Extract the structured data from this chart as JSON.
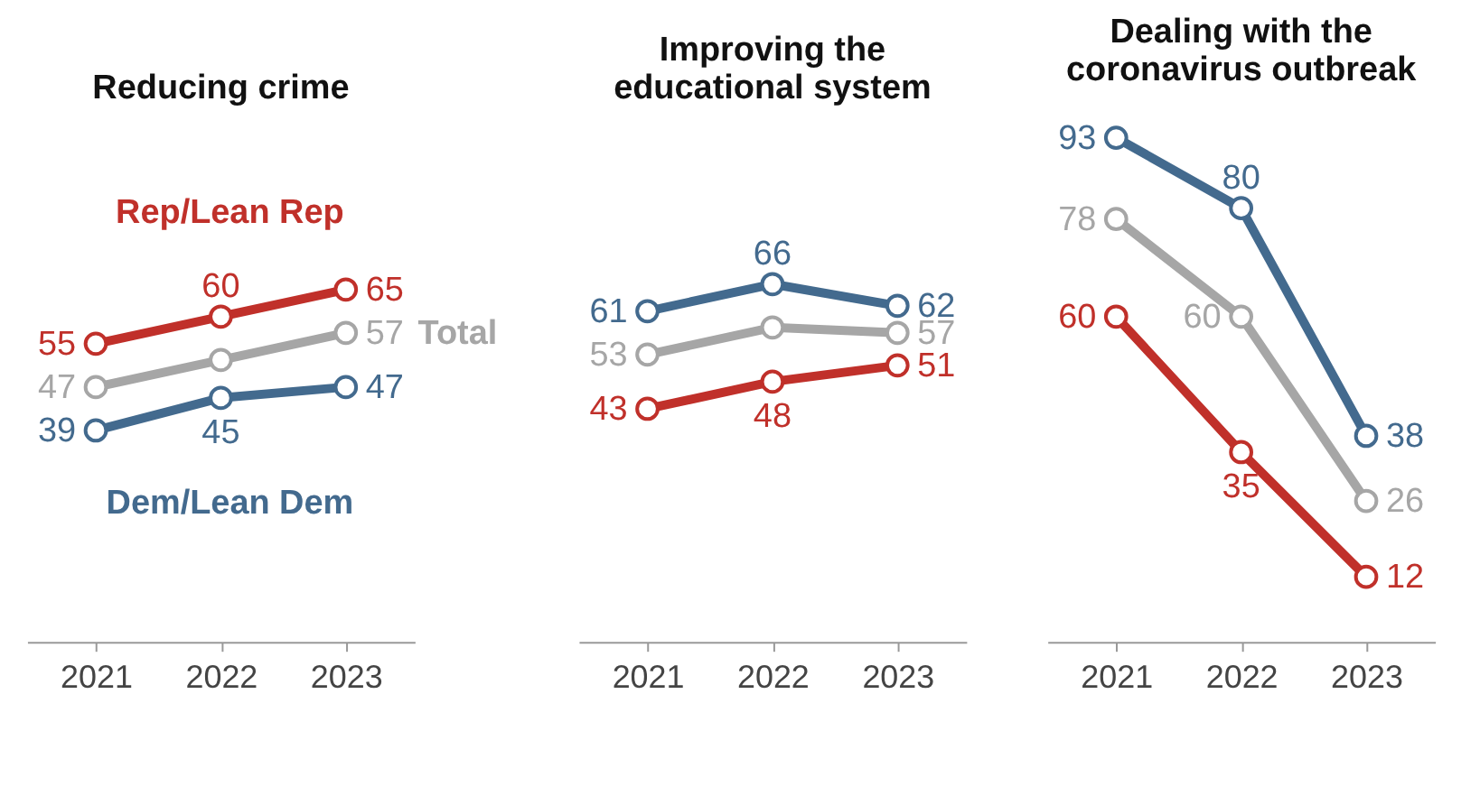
{
  "chart_data": [
    {
      "type": "line",
      "title": "Reducing crime",
      "categories": [
        "2021",
        "2022",
        "2023"
      ],
      "tick_labels": "x",
      "grid": false,
      "marker": "circle",
      "line_style": "solid",
      "series": [
        {
          "name": "Rep/Lean Rep",
          "color": "#c0302a",
          "values": [
            55,
            60,
            65
          ],
          "value_labels": [
            "55",
            "60",
            "65"
          ]
        },
        {
          "name": "Total",
          "color": "#a6a6a6",
          "values": [
            47,
            52,
            57
          ],
          "value_labels": [
            "47",
            null,
            "57"
          ]
        },
        {
          "name": "Dem/Lean Dem",
          "color": "#436a8e",
          "values": [
            39,
            45,
            47
          ],
          "value_labels": [
            "39",
            "45",
            "47"
          ]
        }
      ]
    },
    {
      "type": "line",
      "title": "Improving the educational system",
      "categories": [
        "2021",
        "2022",
        "2023"
      ],
      "tick_labels": "x",
      "grid": false,
      "marker": "circle",
      "line_style": "solid",
      "series": [
        {
          "color": "#c0302a",
          "values": [
            43,
            48,
            51
          ],
          "value_labels": [
            "43",
            "48",
            "51"
          ]
        },
        {
          "color": "#a6a6a6",
          "values": [
            53,
            58,
            57
          ],
          "value_labels": [
            "53",
            null,
            "57"
          ]
        },
        {
          "color": "#436a8e",
          "values": [
            61,
            66,
            62
          ],
          "value_labels": [
            "61",
            "66",
            "62"
          ]
        }
      ]
    },
    {
      "type": "line",
      "title": "Dealing with the coronavirus outbreak",
      "categories": [
        "2021",
        "2022",
        "2023"
      ],
      "tick_labels": "x",
      "grid": false,
      "marker": "circle",
      "line_style": "solid",
      "series": [
        {
          "color": "#c0302a",
          "values": [
            60,
            35,
            12
          ],
          "value_labels": [
            "60",
            "35",
            "12"
          ]
        },
        {
          "color": "#a6a6a6",
          "values": [
            78,
            60,
            26
          ],
          "value_labels": [
            "78",
            "60",
            "26"
          ]
        },
        {
          "color": "#436a8e",
          "values": [
            93,
            80,
            38
          ],
          "value_labels": [
            "93",
            "80",
            "38"
          ]
        }
      ]
    }
  ]
}
